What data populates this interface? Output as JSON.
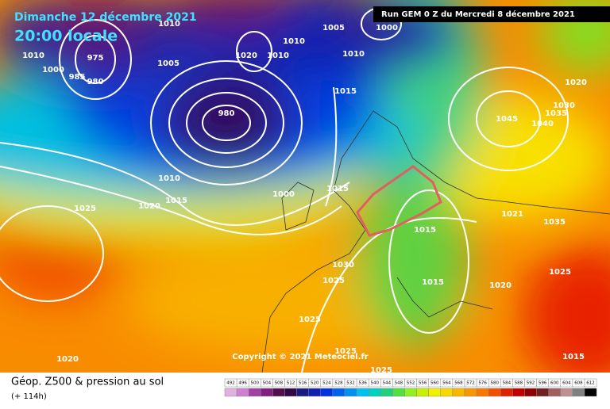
{
  "header": {
    "date": "Dimanche 12 décembre 2021",
    "time": "20:00 locale",
    "run": "Run GEM 0 Z du Mercredi 8 décembre 2021"
  },
  "map": {
    "isobar_labels": [
      1010,
      975,
      1000,
      985,
      980,
      1010,
      1005,
      1020,
      1010,
      1010,
      1005,
      1000,
      1010,
      1015,
      1020,
      1030,
      1035,
      1045,
      1040,
      980,
      1010,
      1015,
      1020,
      1025,
      1000,
      1015,
      1021,
      1035,
      1015,
      1030,
      1025,
      1015,
      1020,
      1025,
      1025,
      1020,
      1025,
      1025,
      1015
    ],
    "copyright": "Copyright © 2021 Meteociel.fr"
  },
  "footer": {
    "title": "Géop. Z500 & pression au sol",
    "lead_time": "(+ 114h)"
  },
  "scale": {
    "values": [
      492,
      496,
      500,
      504,
      508,
      512,
      516,
      520,
      524,
      528,
      532,
      536,
      540,
      544,
      548,
      552,
      556,
      560,
      564,
      568,
      572,
      576,
      580,
      584,
      588,
      592,
      596,
      600,
      604,
      608,
      612
    ],
    "colors": [
      "#e0b0e0",
      "#d080d0",
      "#a040a0",
      "#802080",
      "#501050",
      "#300848",
      "#1a1a80",
      "#1020b0",
      "#0030e0",
      "#0060f0",
      "#0090f0",
      "#00c0f0",
      "#00d0c0",
      "#20d080",
      "#50e040",
      "#90f020",
      "#c8f000",
      "#f0f000",
      "#f8d800",
      "#f8b800",
      "#f89800",
      "#f87800",
      "#f05000",
      "#e02000",
      "#c00000",
      "#900000",
      "#702020",
      "#a06060",
      "#c09090",
      "#808080",
      "#000000"
    ]
  }
}
